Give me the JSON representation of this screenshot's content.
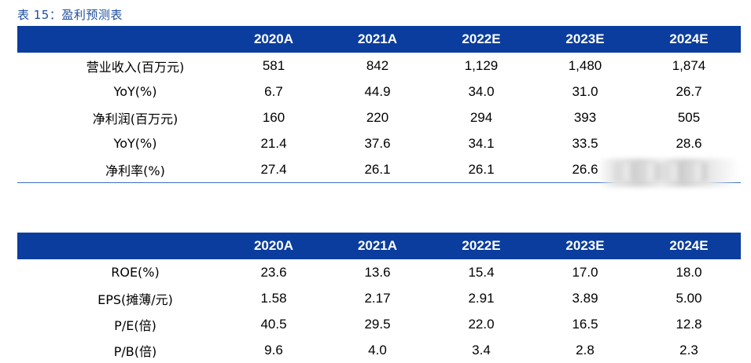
{
  "caption": "表 15：盈利预测表",
  "table1": {
    "columns": [
      "",
      "2020A",
      "2021A",
      "2022E",
      "2023E",
      "2024E"
    ],
    "rows": [
      {
        "label": "营业收入(百万元)",
        "values": [
          "581",
          "842",
          "1,129",
          "1,480",
          "1,874"
        ]
      },
      {
        "label": "YoY(%)",
        "values": [
          "6.7",
          "44.9",
          "34.0",
          "31.0",
          "26.7"
        ]
      },
      {
        "label": "净利润(百万元)",
        "values": [
          "160",
          "220",
          "294",
          "393",
          "505"
        ]
      },
      {
        "label": "YoY(%)",
        "values": [
          "21.4",
          "37.6",
          "34.1",
          "33.5",
          "28.6"
        ]
      },
      {
        "label": "净利率(%)",
        "values": [
          "27.4",
          "26.1",
          "26.1",
          "26.6",
          ""
        ]
      }
    ]
  },
  "table2": {
    "columns": [
      "",
      "2020A",
      "2021A",
      "2022E",
      "2023E",
      "2024E"
    ],
    "rows": [
      {
        "label": "ROE(%)",
        "values": [
          "23.6",
          "13.6",
          "15.4",
          "17.0",
          "18.0"
        ]
      },
      {
        "label": "EPS(摊薄/元)",
        "values": [
          "1.58",
          "2.17",
          "2.91",
          "3.89",
          "5.00"
        ]
      },
      {
        "label": "P/E(倍)",
        "values": [
          "40.5",
          "29.5",
          "22.0",
          "16.5",
          "12.8"
        ]
      },
      {
        "label": "P/B(倍)",
        "values": [
          "9.6",
          "4.0",
          "3.4",
          "2.8",
          "2.3"
        ]
      }
    ]
  },
  "colors": {
    "header_bg": "#0a3d9e",
    "caption_text": "#1f4e9e",
    "rule_line": "#3a6fc4"
  }
}
